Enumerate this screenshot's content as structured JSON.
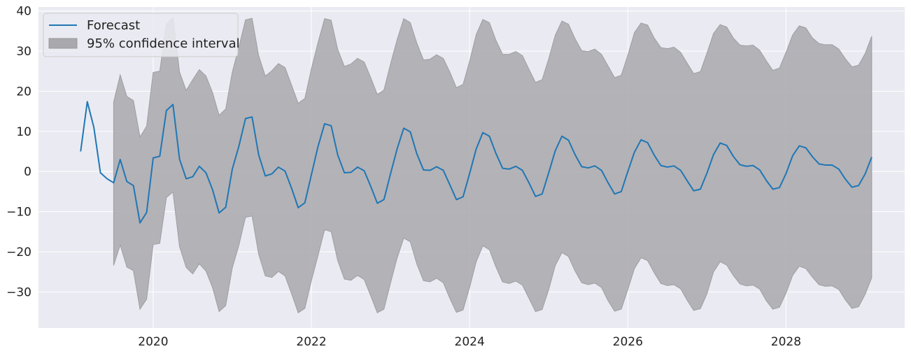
{
  "chart_data": {
    "type": "line",
    "title": "",
    "xlabel": "",
    "ylabel": "",
    "xlim": [
      2018.55,
      2029.5
    ],
    "ylim": [
      -39,
      41
    ],
    "xticks": [
      2020,
      2022,
      2024,
      2026,
      2028
    ],
    "xtick_labels": [
      "2020",
      "2022",
      "2024",
      "2026",
      "2028"
    ],
    "yticks": [
      -30,
      -20,
      -10,
      0,
      10,
      20,
      30,
      40
    ],
    "ytick_labels": [
      "−30",
      "−20",
      "−10",
      "0",
      "10",
      "20",
      "30",
      "40"
    ],
    "grid": true,
    "legend_position": "top-left",
    "colors": {
      "forecast": "#1f77b4",
      "interval_fill": "#a9a8ad",
      "background": "#eaeaf2",
      "grid": "#ffffff"
    },
    "series": [
      {
        "name": "Forecast",
        "kind": "line",
        "x": [
          2019.083,
          2019.167,
          2019.25,
          2019.333,
          2019.417,
          2019.5,
          2019.583,
          2019.667,
          2019.75,
          2019.833,
          2019.917,
          2020.0,
          2020.083,
          2020.167,
          2020.25,
          2020.333,
          2020.417,
          2020.5,
          2020.583,
          2020.667,
          2020.75,
          2020.833,
          2020.917,
          2021.0,
          2021.083,
          2021.167,
          2021.25,
          2021.333,
          2021.417,
          2021.5,
          2021.583,
          2021.667,
          2021.75,
          2021.833,
          2021.917,
          2022.0,
          2022.083,
          2022.167,
          2022.25,
          2022.333,
          2022.417,
          2022.5,
          2022.583,
          2022.667,
          2022.75,
          2022.833,
          2022.917,
          2023.0,
          2023.083,
          2023.167,
          2023.25,
          2023.333,
          2023.417,
          2023.5,
          2023.583,
          2023.667,
          2023.75,
          2023.833,
          2023.917,
          2024.0,
          2024.083,
          2024.167,
          2024.25,
          2024.333,
          2024.417,
          2024.5,
          2024.583,
          2024.667,
          2024.75,
          2024.833,
          2024.917,
          2025.0,
          2025.083,
          2025.167,
          2025.25,
          2025.333,
          2025.417,
          2025.5,
          2025.583,
          2025.667,
          2025.75,
          2025.833,
          2025.917,
          2026.0,
          2026.083,
          2026.167,
          2026.25,
          2026.333,
          2026.417,
          2026.5,
          2026.583,
          2026.667,
          2026.75,
          2026.833,
          2026.917,
          2027.0,
          2027.083,
          2027.167,
          2027.25,
          2027.333,
          2027.417,
          2027.5,
          2027.583,
          2027.667,
          2027.75,
          2027.833,
          2027.917,
          2028.0,
          2028.083,
          2028.167,
          2028.25,
          2028.333,
          2028.417,
          2028.5,
          2028.583,
          2028.667,
          2028.75,
          2028.833,
          2028.917,
          2029.0,
          2029.083
        ],
        "y": [
          5,
          17.4,
          11,
          -0.3,
          -1.8,
          -2.8,
          3,
          -2.5,
          -3.5,
          -12.8,
          -10.2,
          3.4,
          3.8,
          15.2,
          16.7,
          3.1,
          -1.8,
          -1.3,
          1.3,
          -0.3,
          -4.5,
          -10.3,
          -8.9,
          0.6,
          6.3,
          13.2,
          13.6,
          4.2,
          -1.1,
          -0.6,
          1.1,
          0.1,
          -4.2,
          -9,
          -7.8,
          -0.8,
          6.2,
          11.9,
          11.4,
          4.1,
          -0.3,
          -0.2,
          1.1,
          0.2,
          -3.7,
          -7.9,
          -7,
          -0.6,
          5.6,
          10.8,
          9.9,
          4.4,
          0.4,
          0.3,
          1.2,
          0.3,
          -3.3,
          -7,
          -6.3,
          -0.5,
          5.6,
          9.7,
          8.8,
          4.5,
          0.8,
          0.6,
          1.3,
          0.3,
          -2.8,
          -6.2,
          -5.6,
          -0.3,
          5.2,
          8.8,
          7.8,
          4.2,
          1.2,
          0.9,
          1.4,
          0.3,
          -2.8,
          -5.6,
          -5,
          0,
          4.8,
          7.9,
          7.2,
          4.1,
          1.5,
          1.1,
          1.4,
          0.3,
          -2.3,
          -4.8,
          -4.4,
          -0.4,
          4.2,
          7.1,
          6.5,
          3.8,
          1.7,
          1.3,
          1.5,
          0.4,
          -2.2,
          -4.4,
          -4,
          -0.5,
          3.9,
          6.4,
          5.9,
          3.7,
          1.9,
          1.6,
          1.6,
          0.6,
          -1.9,
          -3.9,
          -3.5,
          -0.6,
          3.6
        ]
      },
      {
        "name": "95% confidence interval",
        "kind": "band",
        "x": [
          2019.5,
          2019.583,
          2019.667,
          2019.75,
          2019.833,
          2019.917,
          2020.0,
          2020.083,
          2020.167,
          2020.25,
          2020.333,
          2020.417,
          2020.5,
          2020.583,
          2020.667,
          2020.75,
          2020.833,
          2020.917,
          2021.0,
          2021.083,
          2021.167,
          2021.25,
          2021.333,
          2021.417,
          2021.5,
          2021.583,
          2021.667,
          2021.75,
          2021.833,
          2021.917,
          2022.0,
          2022.083,
          2022.167,
          2022.25,
          2022.333,
          2022.417,
          2022.5,
          2022.583,
          2022.667,
          2022.75,
          2022.833,
          2022.917,
          2023.0,
          2023.083,
          2023.167,
          2023.25,
          2023.333,
          2023.417,
          2023.5,
          2023.583,
          2023.667,
          2023.75,
          2023.833,
          2023.917,
          2024.0,
          2024.083,
          2024.167,
          2024.25,
          2024.333,
          2024.417,
          2024.5,
          2024.583,
          2024.667,
          2024.75,
          2024.833,
          2024.917,
          2025.0,
          2025.083,
          2025.167,
          2025.25,
          2025.333,
          2025.417,
          2025.5,
          2025.583,
          2025.667,
          2025.75,
          2025.833,
          2025.917,
          2026.0,
          2026.083,
          2026.167,
          2026.25,
          2026.333,
          2026.417,
          2026.5,
          2026.583,
          2026.667,
          2026.75,
          2026.833,
          2026.917,
          2027.0,
          2027.083,
          2027.167,
          2027.25,
          2027.333,
          2027.417,
          2027.5,
          2027.583,
          2027.667,
          2027.75,
          2027.833,
          2027.917,
          2028.0,
          2028.083,
          2028.167,
          2028.25,
          2028.333,
          2028.417,
          2028.5,
          2028.583,
          2028.667,
          2028.75,
          2028.833,
          2028.917,
          2029.0,
          2029.083
        ],
        "lower": [
          -23.4,
          -18.3,
          -23.8,
          -24.7,
          -34.3,
          -31.8,
          -18.2,
          -17.9,
          -6.5,
          -5.1,
          -18.7,
          -23.9,
          -25.5,
          -23,
          -24.8,
          -28.9,
          -34.9,
          -33.4,
          -24,
          -18.4,
          -11.4,
          -11.1,
          -20.6,
          -26,
          -26.4,
          -24.9,
          -26,
          -30.5,
          -35.2,
          -34.1,
          -27.2,
          -21,
          -14.5,
          -15,
          -22.2,
          -26.8,
          -27.1,
          -25.9,
          -26.9,
          -31,
          -35.2,
          -34.3,
          -27.8,
          -21.6,
          -16.6,
          -17.5,
          -23.1,
          -27.2,
          -27.5,
          -26.6,
          -27.7,
          -31.6,
          -35.1,
          -34.5,
          -28.9,
          -22.5,
          -18.5,
          -19.5,
          -23.8,
          -27.5,
          -27.9,
          -27.3,
          -28.3,
          -31.6,
          -34.9,
          -34.4,
          -29.4,
          -23.4,
          -20.2,
          -21.2,
          -24.8,
          -27.7,
          -28.2,
          -27.8,
          -28.9,
          -32.2,
          -34.8,
          -34.3,
          -29.4,
          -24.2,
          -21.5,
          -22.2,
          -25.2,
          -27.9,
          -28.4,
          -28.2,
          -29.2,
          -32.1,
          -34.6,
          -34.2,
          -30.5,
          -25,
          -22.5,
          -23.3,
          -25.9,
          -28,
          -28.5,
          -28.3,
          -29.3,
          -32.2,
          -34.3,
          -33.8,
          -30.3,
          -25.9,
          -23.6,
          -24.2,
          -26.3,
          -28.2,
          -28.6,
          -28.5,
          -29.4,
          -32,
          -34.1,
          -33.7,
          -30.6,
          -26.5
        ],
        "upper": [
          17.3,
          24.1,
          18.7,
          17.7,
          8.6,
          11.3,
          24.7,
          25,
          36.7,
          38.4,
          24.8,
          20.2,
          22.9,
          25.4,
          23.8,
          19.7,
          14,
          15.6,
          24.8,
          31,
          37.8,
          38.2,
          28.9,
          23.8,
          25.1,
          26.9,
          25.9,
          21.5,
          17,
          18.2,
          25.6,
          32.1,
          38.1,
          37.7,
          30.4,
          26.2,
          26.8,
          28.2,
          27.3,
          23.4,
          19.2,
          20.3,
          26.8,
          32.8,
          38.1,
          37.1,
          32,
          27.8,
          28,
          29.1,
          28.2,
          24.8,
          20.9,
          21.7,
          27.5,
          34.1,
          37.9,
          37.1,
          32.7,
          29.2,
          29.2,
          29.9,
          28.9,
          25.5,
          22.2,
          22.9,
          28.1,
          34,
          37.5,
          36.7,
          33.1,
          30.1,
          29.9,
          30.5,
          29.2,
          26.3,
          23.4,
          24,
          29,
          34.6,
          37,
          36.5,
          33.3,
          30.9,
          30.6,
          31,
          29.7,
          27,
          24.4,
          24.9,
          29.5,
          34.4,
          36.6,
          36,
          33.3,
          31.5,
          31.3,
          31.5,
          30.2,
          27.6,
          25.2,
          25.8,
          29.7,
          34,
          36.3,
          35.8,
          33.3,
          31.9,
          31.6,
          31.6,
          30.5,
          28.1,
          26.1,
          26.5,
          29.4,
          33.7
        ]
      }
    ]
  },
  "legend": {
    "items": [
      {
        "label": "Forecast",
        "kind": "line"
      },
      {
        "label": "95% confidence interval",
        "kind": "band"
      }
    ]
  }
}
